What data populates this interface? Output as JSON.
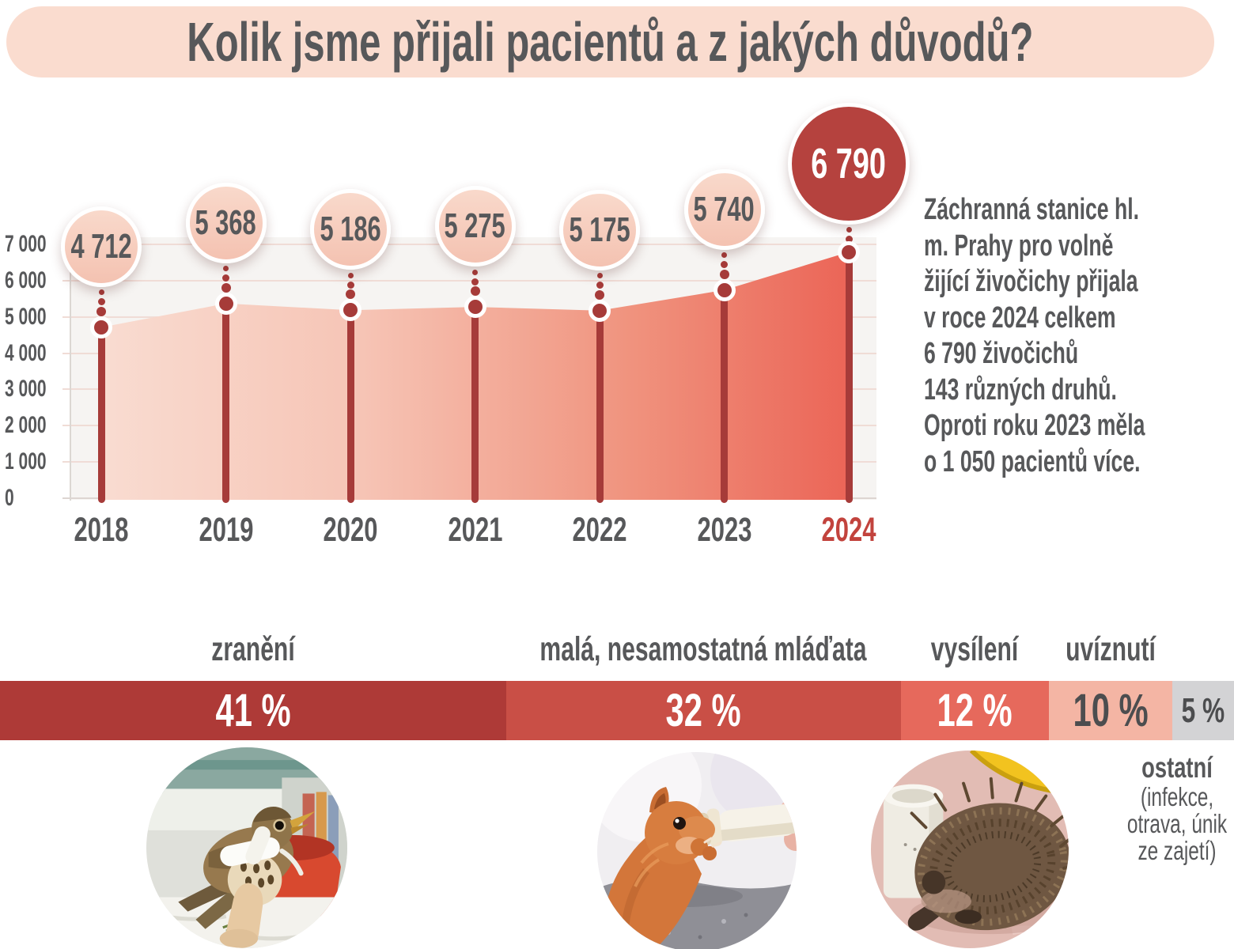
{
  "title": "Kolik jsme přijali pacientů a z jakých důvodů?",
  "colors": {
    "title_bg": "#fadccf",
    "text_dark": "#57585a",
    "accent_red": "#a63b39",
    "bubble_pink_top": "#f9d9cb",
    "bubble_pink_bottom": "#f4c2b1",
    "bubble_red": "#b5423e",
    "year_highlight": "#c2433d",
    "plot_bg": "#f6f4f2",
    "gridline": "#f0dcd6",
    "baseline": "#ddd5d1",
    "area_gradient_left": "#f9dcd1",
    "area_gradient_right": "#eb6557"
  },
  "chart_data": [
    {
      "type": "area",
      "categories": [
        "2018",
        "2019",
        "2020",
        "2021",
        "2022",
        "2023",
        "2024"
      ],
      "values": [
        4712,
        5368,
        5186,
        5275,
        5175,
        5740,
        6790
      ],
      "value_labels": [
        "4 712",
        "5 368",
        "5 186",
        "5 275",
        "5 175",
        "5 740",
        "6 790"
      ],
      "ylim": [
        0,
        7000
      ],
      "y_ticks": [
        "7 000",
        "6 000",
        "5 000",
        "4 000",
        "3 000",
        "2 000",
        "1 000",
        "0"
      ],
      "grid": true,
      "legend": "none",
      "highlight_index": 6
    },
    {
      "type": "stacked-bar",
      "unit": "%",
      "segments": [
        {
          "label": "zranění",
          "value": 41,
          "display": "41 %",
          "color": "#ae3a37",
          "text_color": "#ffffff"
        },
        {
          "label": "malá, nesamostatná mláďata",
          "value": 32,
          "display": "32 %",
          "color": "#c94f46",
          "text_color": "#ffffff"
        },
        {
          "label": "vysílení",
          "value": 12,
          "display": "12 %",
          "color": "#e6695c",
          "text_color": "#ffffff"
        },
        {
          "label": "uvíznutí",
          "value": 10,
          "display": "10 %",
          "color": "#f4b5a4",
          "text_color": "#4c4d4f"
        },
        {
          "label": "ostatní",
          "value": 5,
          "display": "5 %",
          "color": "#d3d3d5",
          "text_color": "#4c4d4f"
        }
      ]
    }
  ],
  "annotation": {
    "lines": [
      "Záchranná stanice hl.",
      "m. Prahy pro volně",
      "žijící živočichy přijala",
      "v roce 2024 celkem",
      "6 790 živočichů",
      "143 různých druhů.",
      "Oproti roku 2023 měla",
      "o 1 050 pacientů více."
    ]
  },
  "other_note": {
    "title": "ostatní",
    "lines": [
      "(infekce,",
      "otrava, únik",
      "ze zajetí)"
    ]
  },
  "photos": [
    {
      "name": "injured-bird-photo",
      "alt": "zraněný pták s obvazem křídla"
    },
    {
      "name": "squirrel-feeding-photo",
      "alt": "mládě veverky krmené z lahvičky"
    },
    {
      "name": "hedgehog-photo",
      "alt": "vysílený ježek u misky"
    }
  ]
}
